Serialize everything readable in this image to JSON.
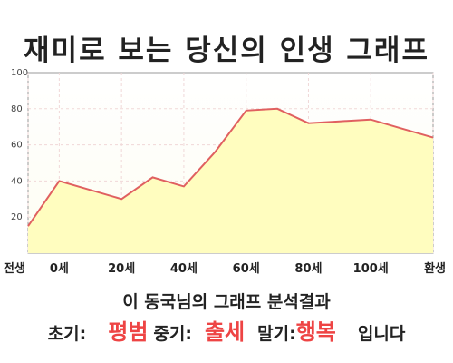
{
  "title": "재미로 보는 당신의 인생 그래프",
  "summary": "이 동국님의 그래프 분석결과",
  "result": {
    "early_label": "초기:",
    "early_value": "평범",
    "middle_label": "중기:",
    "middle_value": "출세",
    "late_label": "말기:",
    "late_value": "행복",
    "suffix": "입니다"
  },
  "colors": {
    "line": "#e06060",
    "fill": "#fffdbf",
    "highlight": "#ee4444"
  },
  "chart_data": {
    "type": "area",
    "x": [
      -10,
      0,
      20,
      30,
      40,
      50,
      60,
      70,
      80,
      90,
      100,
      110,
      120
    ],
    "values": [
      15,
      40,
      30,
      42,
      37,
      56,
      79,
      80,
      72,
      73,
      74,
      69,
      64
    ],
    "x_tick_labels": [
      {
        "x": -10,
        "label": "전생"
      },
      {
        "x": 0,
        "label": "0세"
      },
      {
        "x": 20,
        "label": "20세"
      },
      {
        "x": 40,
        "label": "40세"
      },
      {
        "x": 60,
        "label": "60세"
      },
      {
        "x": 80,
        "label": "80세"
      },
      {
        "x": 100,
        "label": "100세"
      },
      {
        "x": 120,
        "label": "환생"
      }
    ],
    "y_ticks": [
      20,
      40,
      60,
      80,
      100
    ],
    "xlim": [
      -10,
      120
    ],
    "ylim": [
      0,
      100
    ],
    "grid": true
  }
}
